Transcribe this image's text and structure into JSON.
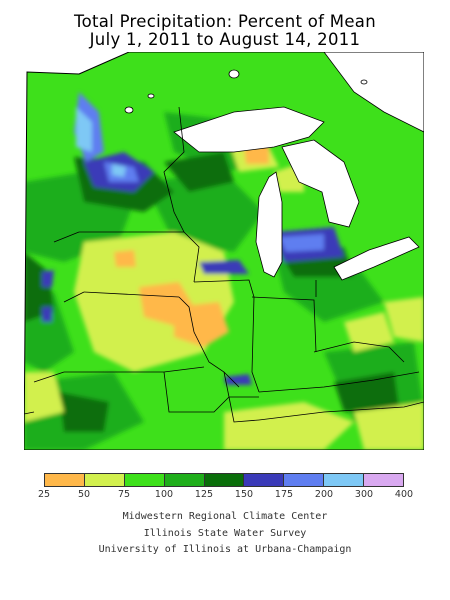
{
  "title": {
    "line1": "Total Precipitation: Percent of Mean",
    "line2": "July 1, 2011 to August 14, 2011"
  },
  "legend": {
    "bins": [
      {
        "color": "#ffb84a"
      },
      {
        "color": "#d2f04e"
      },
      {
        "color": "#3ee01b"
      },
      {
        "color": "#1fae1b"
      },
      {
        "color": "#0a6e0a"
      },
      {
        "color": "#3a3ab8"
      },
      {
        "color": "#5f7ef0"
      },
      {
        "color": "#7ec8f5"
      },
      {
        "color": "#d9a9f0"
      }
    ],
    "labels": [
      "25",
      "50",
      "75",
      "100",
      "125",
      "150",
      "175",
      "200",
      "300",
      "400"
    ]
  },
  "credits": {
    "line1": "Midwestern Regional Climate Center",
    "line2": "Illinois State Water Survey",
    "line3": "University of Illinois at Urbana-Champaign"
  },
  "colors": {
    "lakes": "#ffffff",
    "boundaries": "#000000"
  }
}
